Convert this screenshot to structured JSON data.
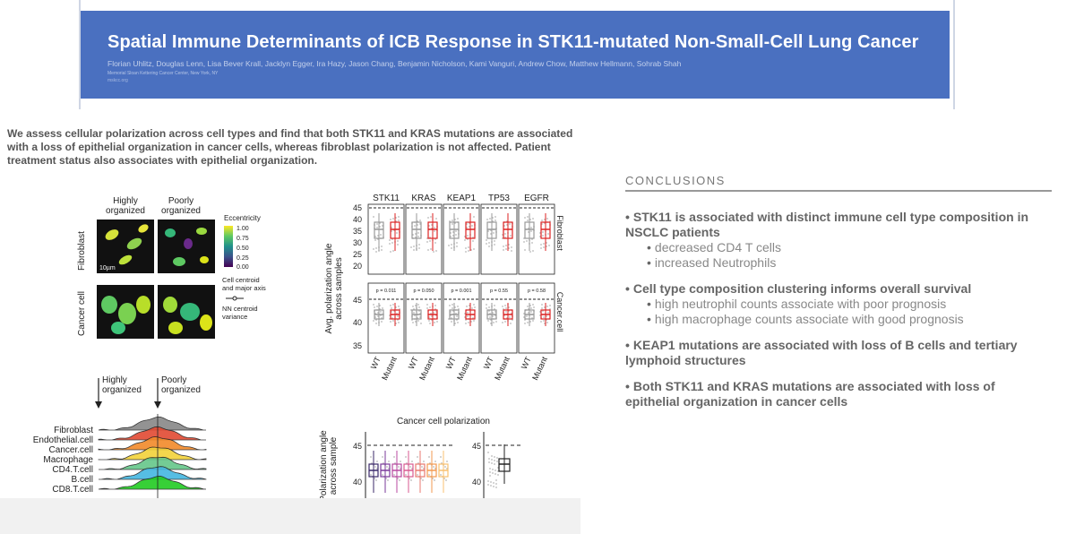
{
  "banner": {
    "title": "Spatial Immune Determinants of ICB Response in STK11-mutated Non-Small-Cell Lung Cancer",
    "authors": "Florian Uhlitz, Douglas Lenn, Lisa Bever Krall, Jacklyn Egger, Ira Hazy, Jason Chang, Benjamin Nicholson, Kami Vanguri, Andrew Chow, Matthew Hellmann, Sohrab Shah",
    "affiliation_1": "Memorial Sloan Kettering Cancer Center, New York, NY",
    "affiliation_2": "mskcc.org"
  },
  "intro_text": "We assess cellular polarization across cell types and find that both STK11 and KRAS mutations are associated with a loss of epithelial organization in cancer cells, whereas fibroblast polarization is not affected. Patient treatment status also associates with epithelial organization.",
  "figure_a": {
    "col_labels": [
      "Highly organized",
      "Poorly organized"
    ],
    "row_labels": [
      "Fibroblast",
      "Cancer cell"
    ],
    "legend_title": "Eccentricity",
    "legend_ticks": [
      "1.00",
      "0.75",
      "0.50",
      "0.25",
      "0.00"
    ],
    "legend_centroid": "Cell centroid and major axis",
    "legend_nn": "NN centroid variance",
    "scale_bar": "10µm"
  },
  "figure_b": {
    "genes": [
      "STK11",
      "KRAS",
      "KEAP1",
      "TP53",
      "EGFR"
    ],
    "ylabel": "Avg. polarization angle across samples",
    "facet_labels": [
      "Fibroblast",
      "Cancer.cell"
    ],
    "yticks_top": [
      "45",
      "40",
      "35",
      "30",
      "25",
      "20"
    ],
    "yticks_bottom": [
      "45",
      "40",
      "35"
    ],
    "xlabels": [
      "WT",
      "Mutant"
    ],
    "pvals_bottom": [
      "p = 0.011",
      "p = 0.050",
      "p = 0.001",
      "p = 0.55",
      "p = 0.58"
    ],
    "colors": {
      "wt": "#999999",
      "mutant": "#dd2222"
    }
  },
  "figure_c": {
    "arrows": [
      "Highly organized",
      "Poorly organized"
    ],
    "cell_types": [
      "Fibroblast",
      "Endothelial.cell",
      "Cancer.cell",
      "Macrophage",
      "CD4.T.cell",
      "B.cell",
      "CD8.T.cell"
    ],
    "colors": [
      "#888888",
      "#e24a33",
      "#f28a2a",
      "#f2d23a",
      "#66c78a",
      "#44b6e0",
      "#22cc22"
    ]
  },
  "figure_d": {
    "title": "Cancer cell polarization",
    "ylabel": "Polarization angle across sample",
    "yticks": [
      "45",
      "40"
    ]
  },
  "conclusions": {
    "heading": "CONCLUSIONS",
    "items": [
      {
        "main": "STK11 is associated with distinct immune cell type composition in NSCLC patients",
        "subs": [
          "decreased CD4 T cells",
          "increased Neutrophils"
        ]
      },
      {
        "main": "Cell type composition clustering informs overall survival",
        "subs": [
          "high neutrophil counts associate with poor prognosis",
          "high macrophage counts associate with good prognosis"
        ]
      },
      {
        "main": "KEAP1 mutations are associated with loss of B cells and tertiary lymphoid structures",
        "subs": []
      },
      {
        "main": "Both STK11 and KRAS mutations are associated with loss of epithelial organization in cancer cells",
        "subs": []
      }
    ]
  }
}
